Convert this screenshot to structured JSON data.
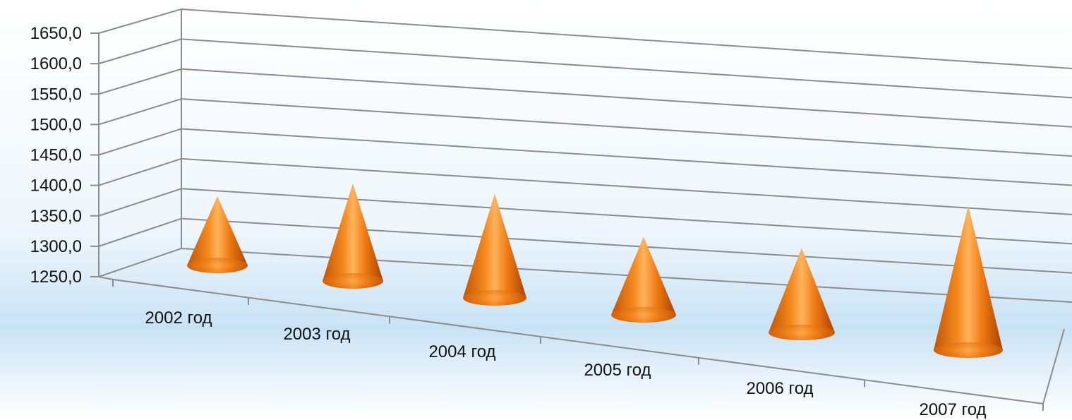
{
  "colors": {
    "background_top": "#ffffff",
    "background_mid": "#e6f2fb",
    "background_band": "#bcdcf3",
    "gridline": "#8c8c8c",
    "cone_dark": "#b84a00",
    "cone_mid": "#f07a12",
    "cone_light": "#ffb056"
  },
  "chart_data": {
    "type": "bar",
    "bar_shape": "cone-3d",
    "grid": true,
    "legend": "none",
    "ylim": [
      1250,
      1650
    ],
    "yticks": [
      1250,
      1300,
      1350,
      1400,
      1450,
      1500,
      1550,
      1600,
      1650
    ],
    "ytick_labels": [
      "1250,0",
      "1300,0",
      "1350,0",
      "1400,0",
      "1450,0",
      "1500,0",
      "1550,0",
      "1600,0",
      "1650,0"
    ],
    "categories": [
      "2002 год",
      "2003 год",
      "2004 год",
      "2005 год",
      "2006 год",
      "2007 год"
    ],
    "values": [
      1395,
      1455,
      1465,
      1405,
      1415,
      1535
    ],
    "title": "",
    "xlabel": "",
    "ylabel": ""
  }
}
